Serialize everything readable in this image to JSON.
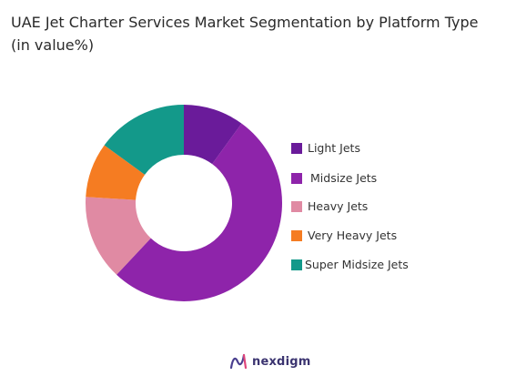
{
  "title": "UAE Jet Charter Services Market Segmentation by Platform Type (in value%)",
  "brand": {
    "name": "nexdigm",
    "icon": "nexdigm-logo-icon"
  },
  "chart_data": {
    "type": "donut",
    "title": "UAE Jet Charter Services Market Segmentation by Platform Type (in value%)",
    "legend_position": "right",
    "categories": [
      "Light Jets",
      "Midsize Jets",
      "Heavy Jets",
      "Very Heavy Jets",
      "Super Midsize Jets"
    ],
    "values": [
      10,
      52,
      14,
      9,
      15
    ],
    "colors": [
      "#6a1b9a",
      "#8e24aa",
      "#e08aa3",
      "#f57c22",
      "#13998a"
    ]
  }
}
